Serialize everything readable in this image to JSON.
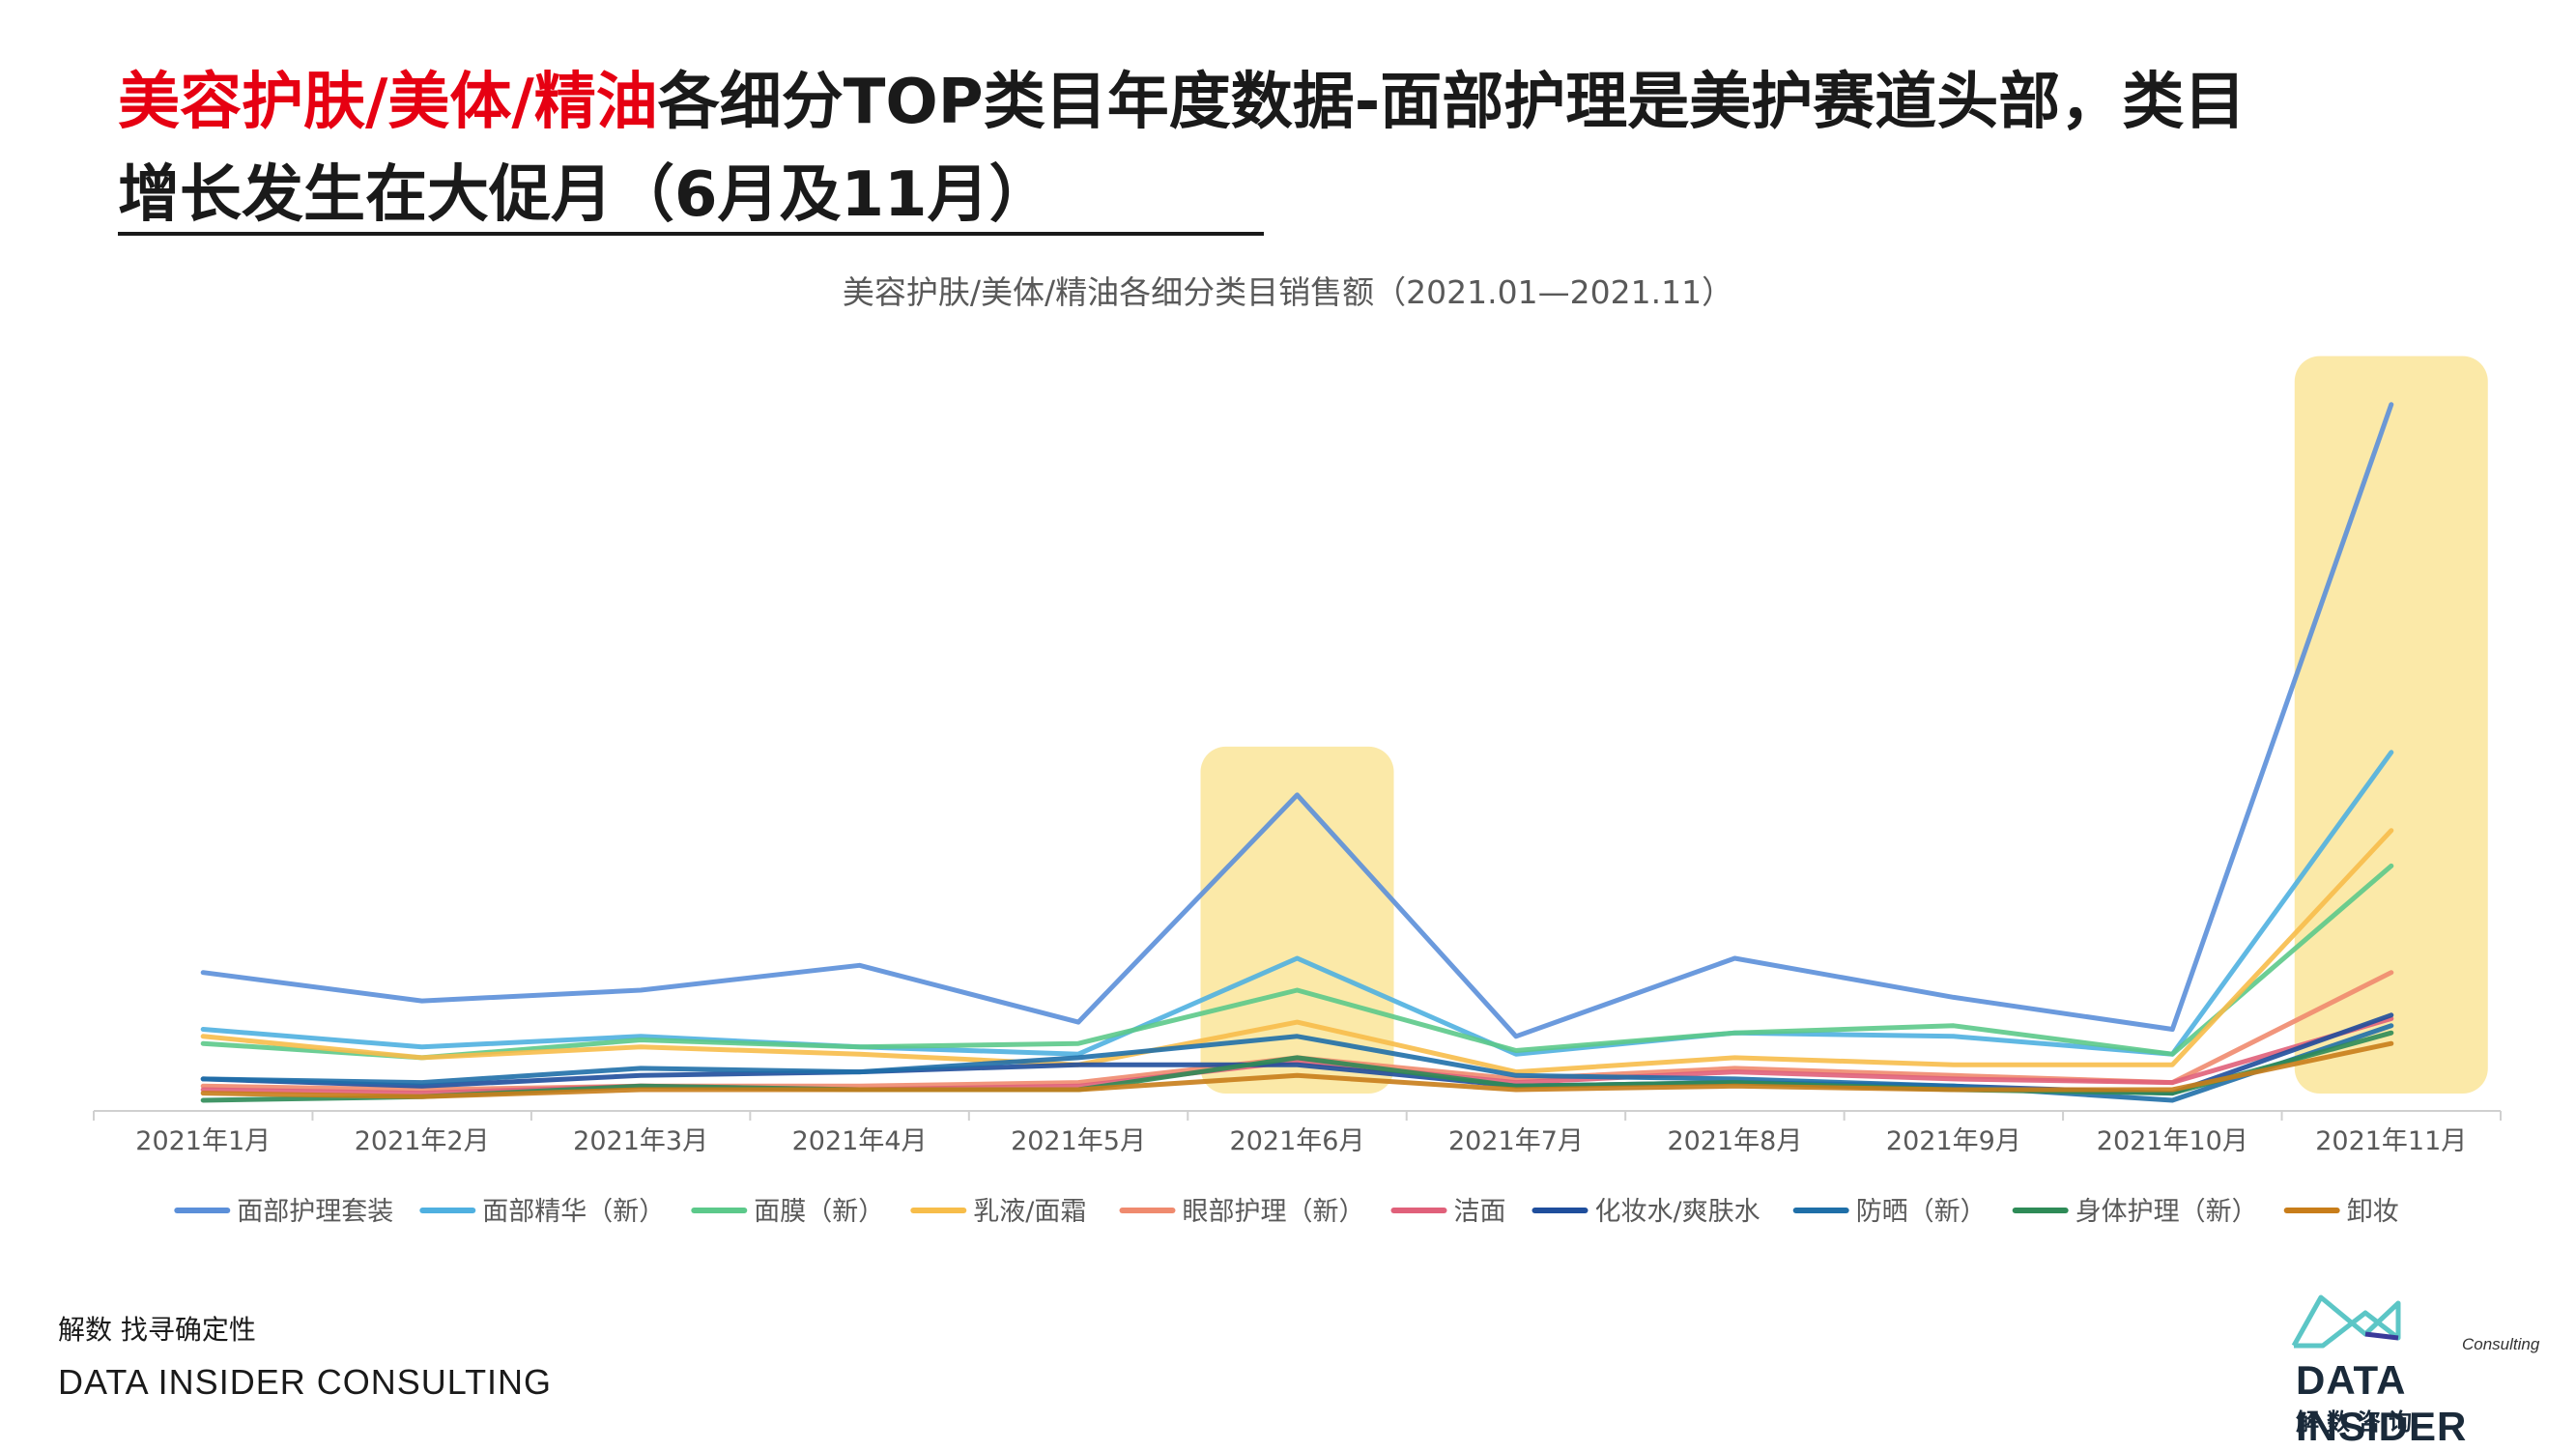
{
  "title": {
    "red_part": "美容护肤/美体/精油",
    "rest_line1": "各细分TOP类目年度数据-面部护理是美护赛道头部，类目",
    "line2": "增长发生在大促月（6月及11月）"
  },
  "footer": {
    "cn": "解数 找寻确定性",
    "en": "DATA INSIDER CONSULTING"
  },
  "logo": {
    "consulting": "Consulting",
    "main": "DATA INSIDER",
    "cn": "解数咨询"
  },
  "chart_data": {
    "type": "line",
    "title": "美容护肤/美体/精油各细分类目销售额（2021.01—2021.11）",
    "categories": [
      "2021年1月",
      "2021年2月",
      "2021年3月",
      "2021年4月",
      "2021年5月",
      "2021年6月",
      "2021年7月",
      "2021年8月",
      "2021年9月",
      "2021年10月",
      "2021年11月"
    ],
    "highlight_categories": [
      "2021年6月",
      "2021年11月"
    ],
    "highlight_color": "#fbe9a8",
    "ylim": [
      0,
      100
    ],
    "y_axis_visible": false,
    "grid": false,
    "legend_position": "bottom",
    "series": [
      {
        "name": "面部护理套装",
        "color": "#5b8fd9",
        "values": [
          19.5,
          15.5,
          17,
          20.5,
          12.5,
          44.5,
          10.5,
          21.5,
          16,
          11.5,
          99.5
        ]
      },
      {
        "name": "面部精华（新）",
        "color": "#4fb0e0",
        "values": [
          11.5,
          9,
          10.5,
          9,
          8,
          21.5,
          8,
          11,
          10.5,
          8,
          50.5
        ]
      },
      {
        "name": "面膜（新）",
        "color": "#5cc98a",
        "values": [
          9.5,
          7.5,
          10,
          9,
          9.5,
          17,
          8.5,
          11,
          12,
          8,
          34.5
        ]
      },
      {
        "name": "乳液/面霜",
        "color": "#f7bd4a",
        "values": [
          10.5,
          7.5,
          9,
          8,
          6.5,
          12.5,
          5.5,
          7.5,
          6.5,
          6.5,
          39.5
        ]
      },
      {
        "name": "眼部护理（新）",
        "color": "#ef8a6e",
        "values": [
          3.5,
          3,
          3.5,
          3.5,
          4,
          7.5,
          4.5,
          6,
          5,
          4,
          19.5
        ]
      },
      {
        "name": "洁面",
        "color": "#e0607a",
        "values": [
          3,
          2.5,
          3.5,
          3,
          3.5,
          7,
          4,
          5.5,
          4.5,
          4,
          13
        ]
      },
      {
        "name": "化妆水/爽肤水",
        "color": "#1f4e9c",
        "values": [
          4.5,
          3.5,
          5,
          5.5,
          6.5,
          6.5,
          3.5,
          4,
          3.5,
          2.5,
          13.5
        ]
      },
      {
        "name": "防晒（新）",
        "color": "#1f6fa8",
        "values": [
          4.5,
          4,
          6,
          5.5,
          7.5,
          10.5,
          5,
          4.5,
          3.5,
          1.5,
          12
        ]
      },
      {
        "name": "身体护理（新）",
        "color": "#2e8b57",
        "values": [
          1.5,
          2,
          3.5,
          3,
          3,
          7.5,
          3.5,
          4,
          3,
          2.5,
          11
        ]
      },
      {
        "name": "卸妆",
        "color": "#c87d1a",
        "values": [
          2.5,
          2,
          3,
          3,
          3,
          5,
          3,
          3.5,
          3,
          3,
          9.5
        ]
      }
    ]
  }
}
